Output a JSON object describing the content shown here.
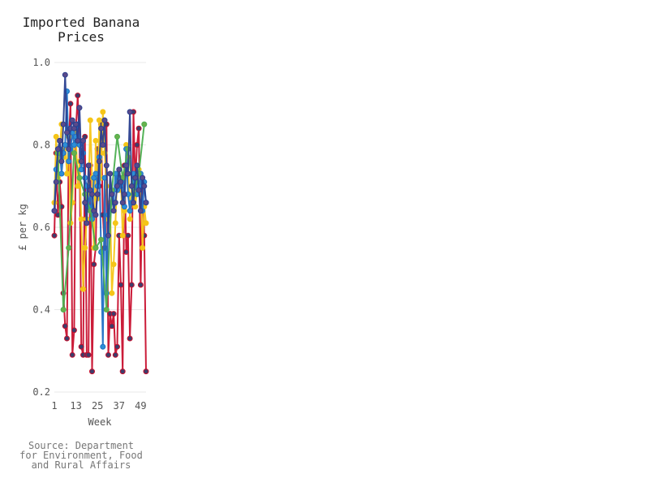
{
  "chart_data": {
    "type": "line",
    "title_lines": [
      "Imported Banana",
      "Prices"
    ],
    "xlabel": "Week",
    "ylabel": "£ per kg",
    "source_lines": [
      "Source: Department",
      "for Environment, Food",
      "and Rural Affairs"
    ],
    "xlim": [
      1,
      52
    ],
    "ylim": [
      0.2,
      1.0
    ],
    "x_ticks": [
      "1",
      "13",
      "25",
      "37",
      "49"
    ],
    "y_ticks": [
      "0.2",
      "0.4",
      "0.6",
      "0.8",
      "1.0"
    ],
    "grid": true,
    "legend": "none",
    "series": [
      {
        "color": "#c8102e",
        "marker": "#3d3d6b",
        "x": [
          1,
          2,
          3,
          4,
          5,
          6,
          7,
          8,
          9,
          10,
          11,
          12,
          13,
          14,
          15,
          16,
          17,
          18,
          19,
          20,
          21,
          22,
          23,
          24,
          25,
          26,
          27,
          28,
          29,
          30,
          31,
          32,
          33,
          34,
          35,
          36,
          37,
          38,
          39,
          40,
          41,
          42,
          43,
          44,
          45,
          46,
          47,
          48,
          49,
          50,
          51,
          52
        ],
        "y": [
          0.58,
          0.78,
          0.63,
          0.71,
          0.65,
          0.44,
          0.36,
          0.33,
          0.8,
          0.9,
          0.29,
          0.35,
          0.84,
          0.92,
          0.8,
          0.31,
          0.29,
          0.82,
          0.29,
          0.29,
          0.75,
          0.25,
          0.51,
          0.55,
          0.79,
          0.7,
          0.85,
          0.63,
          0.55,
          0.85,
          0.29,
          0.39,
          0.36,
          0.39,
          0.29,
          0.31,
          0.58,
          0.46,
          0.25,
          0.75,
          0.54,
          0.58,
          0.33,
          0.46,
          0.88,
          0.71,
          0.8,
          0.84,
          0.46,
          0.72,
          0.58,
          0.25
        ]
      },
      {
        "color": "#f5c518",
        "marker": "#f5c518",
        "x": [
          1,
          2,
          3,
          4,
          5,
          6,
          7,
          8,
          9,
          10,
          11,
          12,
          13,
          14,
          15,
          16,
          17,
          18,
          19,
          20,
          21,
          22,
          23,
          24,
          25,
          26,
          27,
          28,
          29,
          30,
          31,
          32,
          33,
          34,
          35,
          36,
          37,
          38,
          39,
          40,
          41,
          42,
          43,
          44,
          45,
          46,
          47,
          48,
          49,
          50,
          51,
          52
        ],
        "y": [
          0.66,
          0.82,
          0.72,
          0.79,
          0.85,
          0.77,
          0.8,
          0.73,
          0.82,
          0.61,
          0.66,
          0.8,
          0.83,
          0.7,
          0.76,
          0.62,
          0.45,
          0.55,
          0.62,
          0.68,
          0.86,
          0.72,
          0.55,
          0.81,
          0.67,
          0.86,
          0.72,
          0.88,
          0.78,
          0.7,
          0.62,
          0.66,
          0.44,
          0.51,
          0.61,
          0.73,
          0.69,
          0.72,
          0.58,
          0.64,
          0.8,
          0.77,
          0.62,
          0.7,
          0.71,
          0.65,
          0.69,
          0.74,
          0.72,
          0.55,
          0.65,
          0.61
        ]
      },
      {
        "color": "#1f6fc5",
        "marker": "#2d8fd6",
        "x": [
          1,
          2,
          3,
          4,
          5,
          6,
          7,
          8,
          9,
          10,
          11,
          12,
          13,
          14,
          15,
          16,
          17,
          18,
          19,
          20,
          21,
          22,
          23,
          24,
          25,
          26,
          27,
          28,
          29,
          30,
          31,
          32,
          33,
          34,
          35,
          36,
          37,
          38,
          39,
          40,
          41,
          42,
          43,
          44,
          45,
          46,
          47,
          48,
          49,
          50,
          51,
          52
        ],
        "y": [
          0.64,
          0.74,
          0.78,
          0.79,
          0.73,
          0.78,
          0.8,
          0.93,
          0.76,
          0.79,
          0.83,
          0.8,
          0.82,
          0.85,
          0.8,
          0.74,
          0.78,
          0.72,
          0.7,
          0.65,
          0.69,
          0.62,
          0.72,
          0.73,
          0.7,
          0.77,
          0.54,
          0.31,
          0.72,
          0.44,
          0.63,
          0.64,
          0.68,
          0.66,
          0.73,
          0.69,
          0.72,
          0.7,
          0.71,
          0.65,
          0.79,
          0.68,
          0.64,
          0.66,
          0.73,
          0.71,
          0.68,
          0.7,
          0.73,
          0.64,
          0.71,
          0.66
        ]
      },
      {
        "color": "#4caf50",
        "marker": "#6ab04c",
        "x": [
          3,
          6,
          9,
          12,
          15,
          18,
          21,
          24,
          27,
          30,
          33,
          36,
          39,
          42,
          45,
          48,
          51
        ],
        "y": [
          0.78,
          0.4,
          0.55,
          0.78,
          0.72,
          0.68,
          0.64,
          0.55,
          0.57,
          0.4,
          0.69,
          0.82,
          0.72,
          0.79,
          0.68,
          0.73,
          0.85
        ]
      },
      {
        "color": "#2a3f8f",
        "marker": "#5a4a8a",
        "x": [
          1,
          2,
          3,
          4,
          5,
          6,
          7,
          8,
          9,
          10,
          11,
          12,
          13,
          14,
          15,
          16,
          17,
          18,
          19,
          20,
          21,
          22,
          23,
          24,
          25,
          26,
          27,
          28,
          29,
          30,
          31,
          32,
          33,
          34,
          35,
          36,
          37,
          38,
          39,
          40,
          41,
          42,
          43,
          44,
          45,
          46,
          47,
          48,
          49,
          50,
          51,
          52
        ],
        "y": [
          0.64,
          0.71,
          0.79,
          0.81,
          0.76,
          0.85,
          0.97,
          0.83,
          0.79,
          0.84,
          0.86,
          0.84,
          0.85,
          0.81,
          0.89,
          0.76,
          0.81,
          0.66,
          0.61,
          0.75,
          0.69,
          0.68,
          0.64,
          0.63,
          0.68,
          0.76,
          0.84,
          0.8,
          0.86,
          0.75,
          0.58,
          0.73,
          0.68,
          0.64,
          0.66,
          0.7,
          0.74,
          0.71,
          0.66,
          0.68,
          0.75,
          0.73,
          0.88,
          0.7,
          0.66,
          0.72,
          0.75,
          0.69,
          0.64,
          0.72,
          0.7,
          0.66
        ]
      }
    ]
  }
}
